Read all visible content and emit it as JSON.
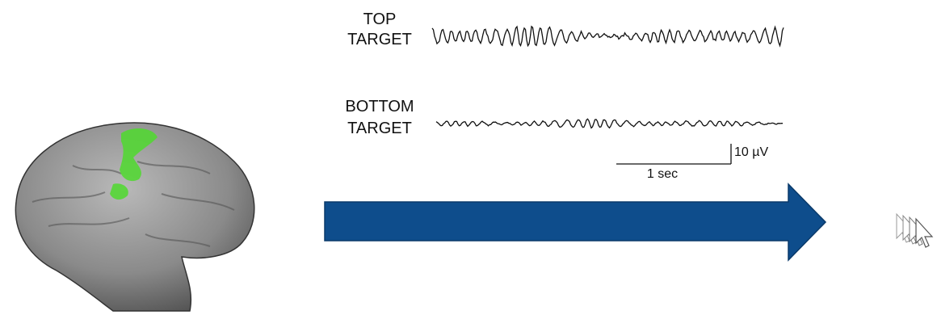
{
  "traces": [
    {
      "label": [
        "TOP",
        "TARGET"
      ]
    },
    {
      "label": [
        "BOTTOM",
        "TARGET"
      ]
    }
  ],
  "scale": {
    "amplitude": "10 µV",
    "time": "1 sec"
  }
}
